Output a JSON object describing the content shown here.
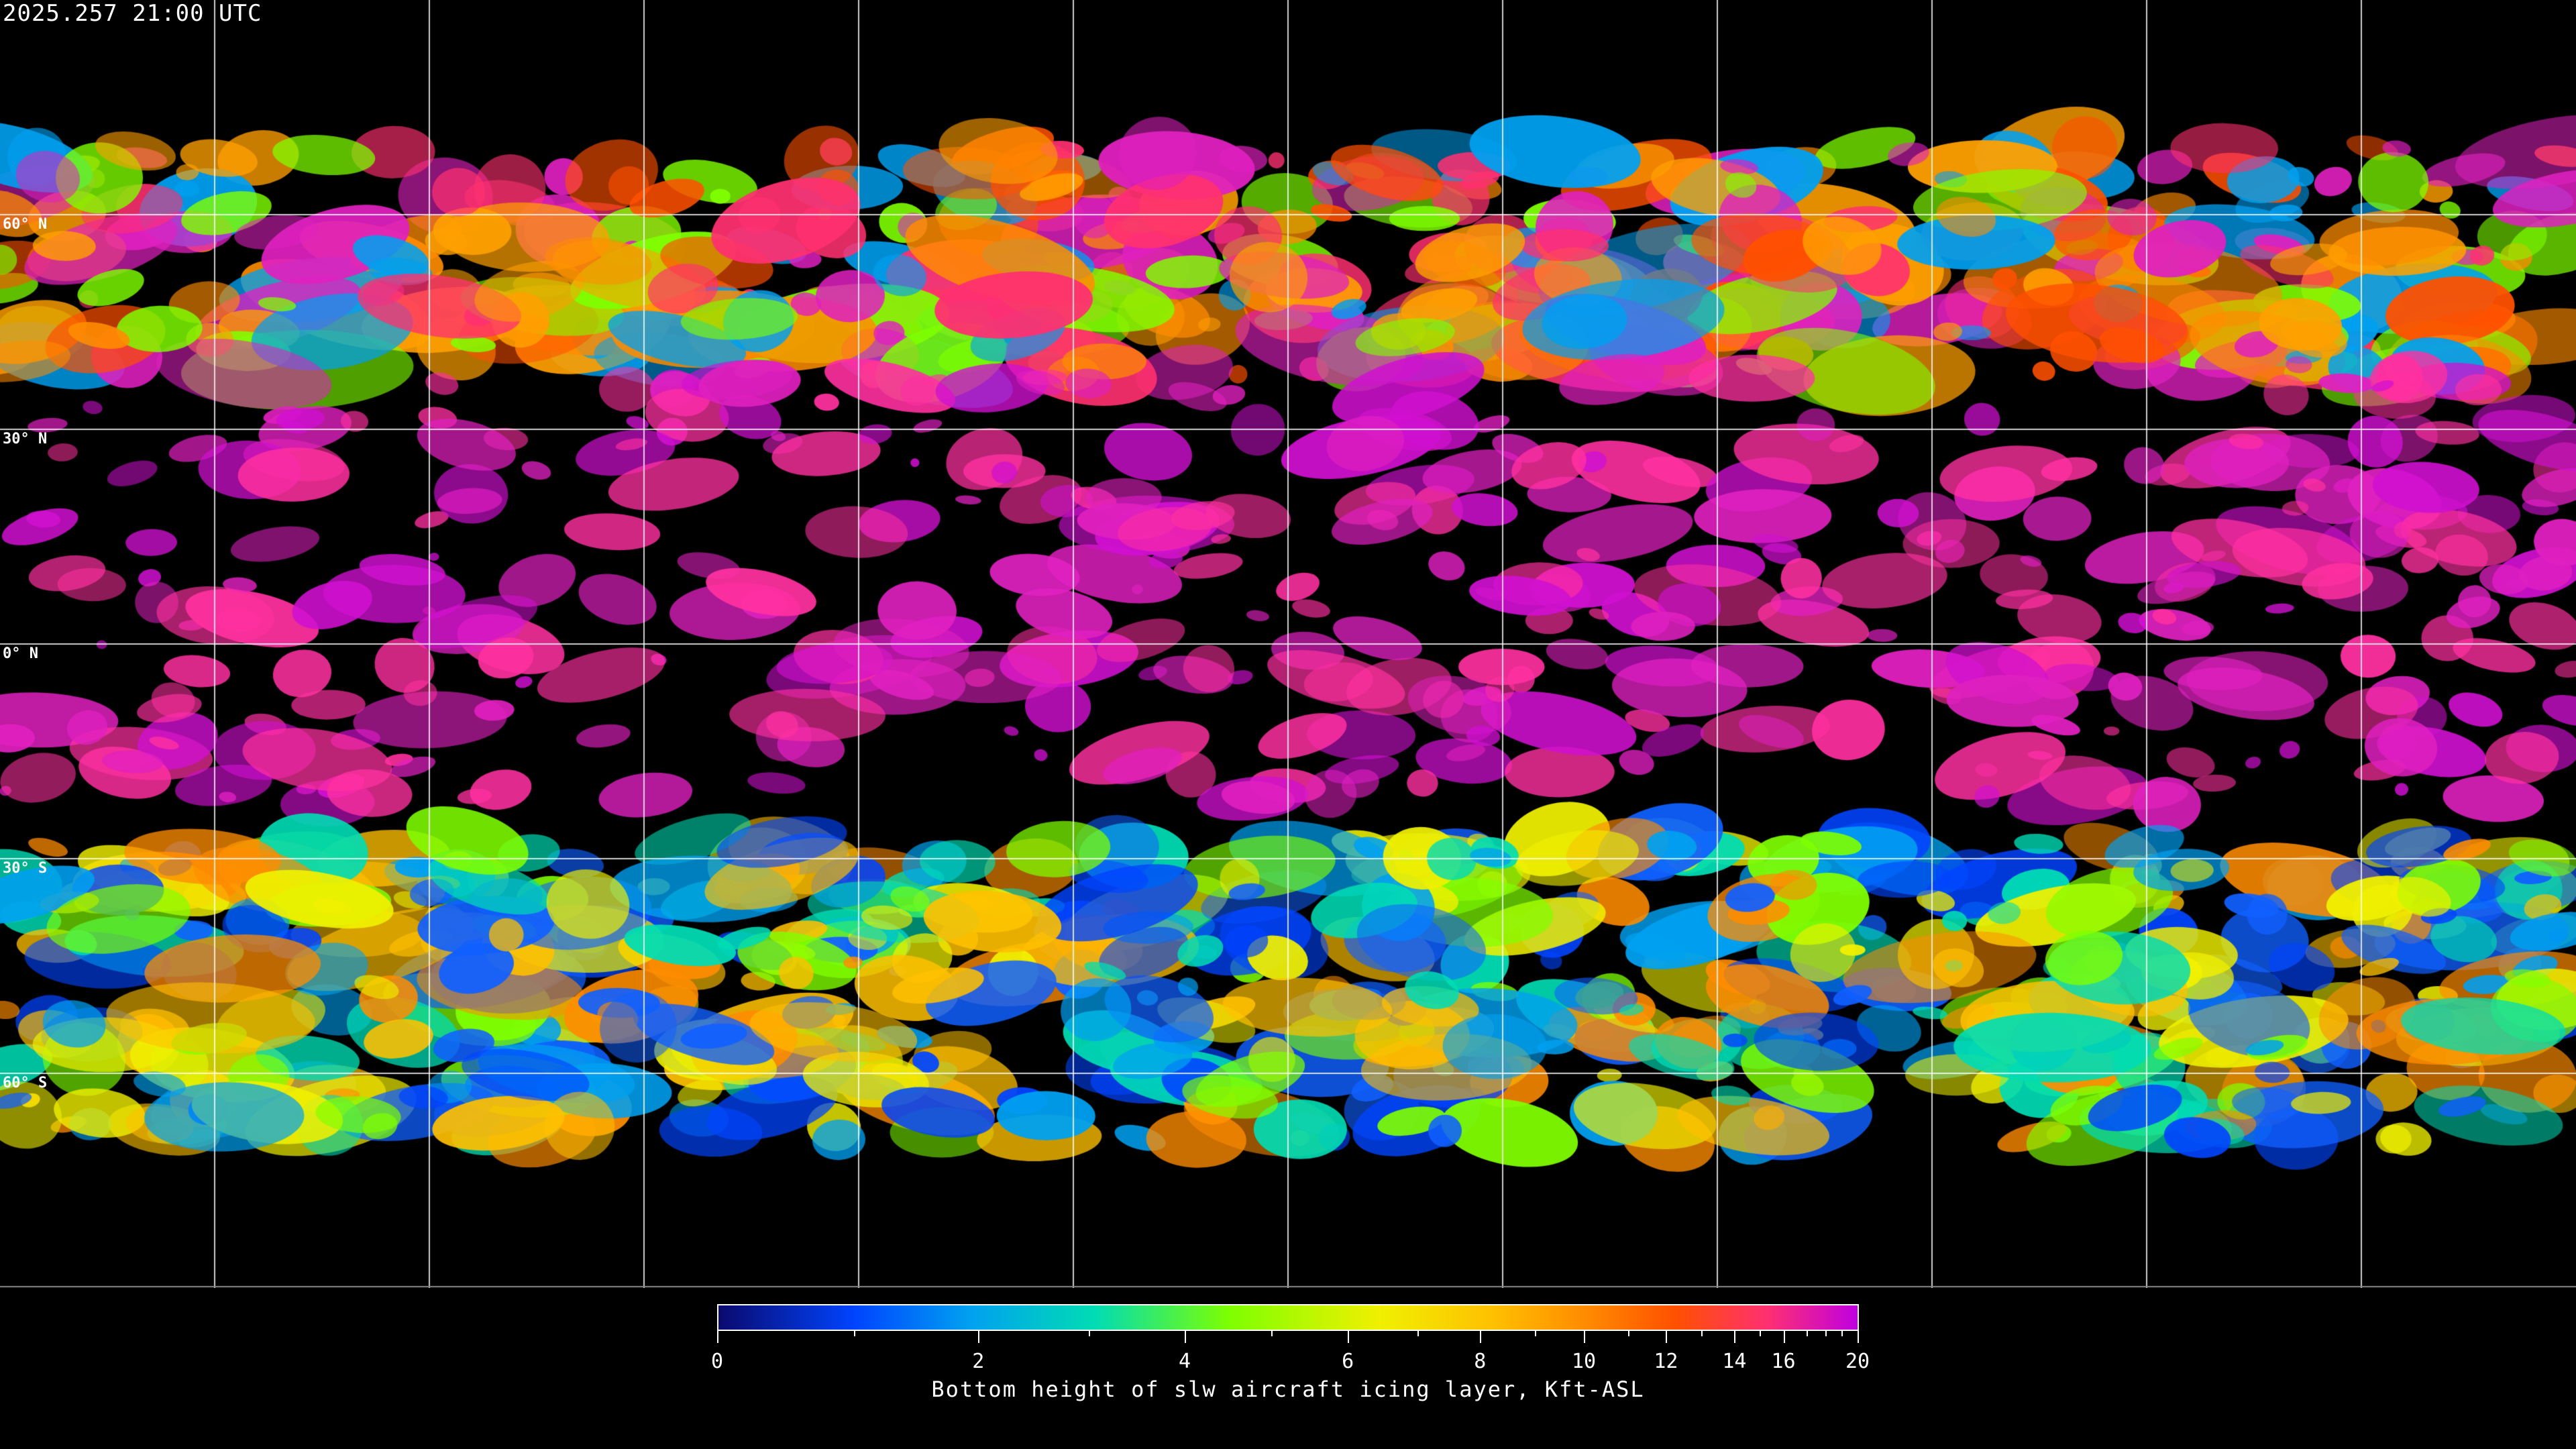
{
  "header": {
    "timestamp": "2025.257 21:00 UTC"
  },
  "map": {
    "projection": "equirectangular",
    "grid_spacing_deg": 30,
    "latitude_labels": [
      "60° N",
      "30° N",
      "0° N",
      "30° S",
      "60° S"
    ]
  },
  "colorbar": {
    "title": "Bottom height of slw aircraft icing layer, Kft-ASL",
    "range": [
      0,
      20
    ],
    "tick_labels": [
      "0",
      "2",
      "4",
      "6",
      "8",
      "10",
      "12",
      "14",
      "16",
      "20"
    ],
    "colors": [
      "#0a0a6e",
      "#0044ff",
      "#00a0f0",
      "#00dcb4",
      "#7fff00",
      "#f0f000",
      "#ffc000",
      "#ff8c00",
      "#ff5000",
      "#ff3070",
      "#c000e0"
    ]
  }
}
